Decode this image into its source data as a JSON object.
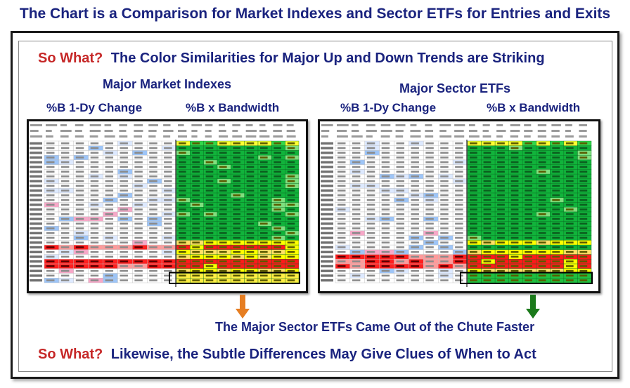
{
  "title": "The Chart is a Comparison for Market Indexes and Sector ETFs for Entries and Exits",
  "headline1": {
    "lead": "So What?",
    "text": "The Color Similarities for Major Up and Down Trends are Striking"
  },
  "left_panel": {
    "heading": "Major Market Indexes",
    "col1": "%B 1-Dy Change",
    "col2": "%B x Bandwidth"
  },
  "right_panel": {
    "heading": "Major Sector ETFs",
    "col1": "%B 1-Dy Change",
    "col2": "%B x Bandwidth"
  },
  "callout": "The Major Sector ETFs Came Out of the Chute Faster",
  "headline2": {
    "lead": "So What?",
    "text": "Likewise, the Subtle Differences May Give Clues of When to Act"
  },
  "arrows": [
    {
      "name": "left-pointer",
      "color": "#e67e22"
    },
    {
      "name": "right-pointer",
      "color": "#1b7a1b"
    }
  ]
}
